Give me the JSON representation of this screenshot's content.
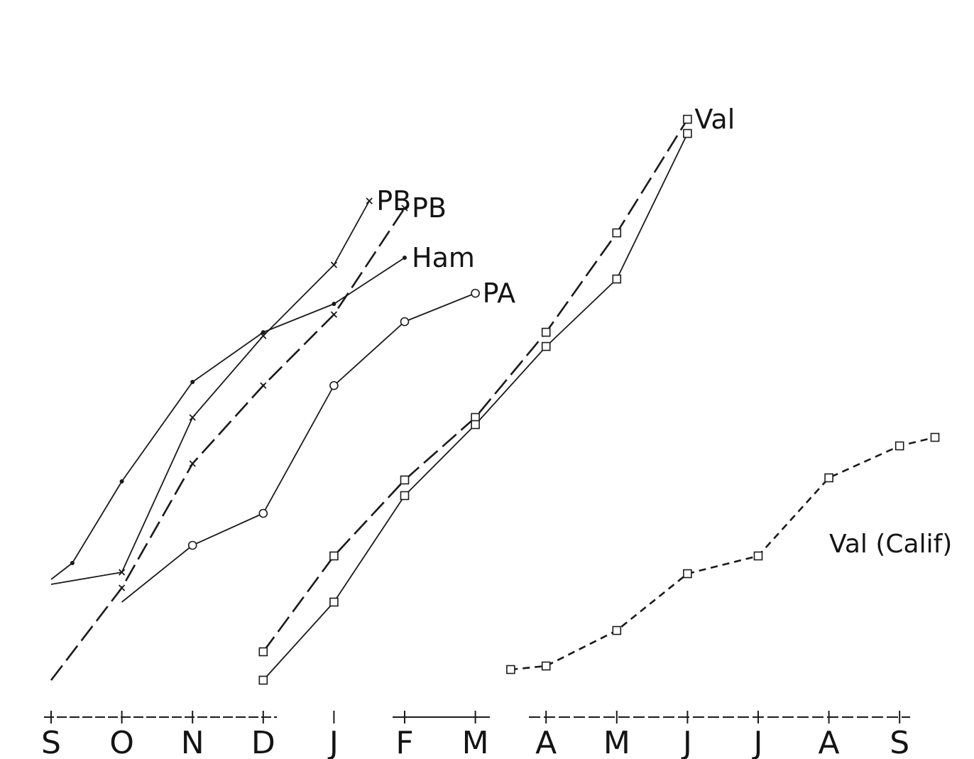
{
  "chart_data": {
    "type": "line",
    "title": "",
    "xlabel": "",
    "ylabel": "",
    "x_categories": [
      "S",
      "O",
      "N",
      "D",
      "J",
      "F",
      "M",
      "A",
      "M",
      "J",
      "J",
      "A",
      "S"
    ],
    "grid": false,
    "series": [
      {
        "name": "PB",
        "marker": "x",
        "dashed": true,
        "points": [
          [
            0,
            0.2
          ],
          [
            1,
            1.5
          ],
          [
            2,
            3.25
          ],
          [
            3,
            4.35
          ],
          [
            4,
            5.35
          ],
          [
            5,
            6.85
          ]
        ]
      },
      {
        "name": "PB",
        "marker": "x",
        "dashed": false,
        "points": [
          [
            0,
            1.55
          ],
          [
            1,
            1.72
          ],
          [
            2,
            3.9
          ],
          [
            3,
            5.05
          ],
          [
            4,
            6.05
          ],
          [
            4.5,
            6.95
          ]
        ]
      },
      {
        "name": "Ham",
        "marker": "dot",
        "dashed": false,
        "points": [
          [
            0,
            1.62
          ],
          [
            0.3,
            1.85
          ],
          [
            1,
            3.0
          ],
          [
            2,
            4.4
          ],
          [
            3,
            5.1
          ],
          [
            4,
            5.5
          ],
          [
            5,
            6.15
          ]
        ]
      },
      {
        "name": "PA",
        "marker": "circle",
        "dashed": false,
        "points": [
          [
            1,
            1.3
          ],
          [
            2,
            2.1
          ],
          [
            3,
            2.55
          ],
          [
            4,
            4.35
          ],
          [
            5,
            5.25
          ],
          [
            6,
            5.65
          ]
        ]
      },
      {
        "name": "Val",
        "marker": "square",
        "dashed": true,
        "points": [
          [
            3,
            0.6
          ],
          [
            4,
            1.95
          ],
          [
            5,
            3.02
          ],
          [
            6,
            3.9
          ],
          [
            7,
            5.1
          ],
          [
            8,
            6.5
          ],
          [
            9,
            8.1
          ]
        ]
      },
      {
        "name": "",
        "marker": "square",
        "dashed": false,
        "points": [
          [
            3,
            0.2
          ],
          [
            4,
            1.3
          ],
          [
            5,
            2.8
          ],
          [
            6,
            3.8
          ],
          [
            7,
            4.9
          ],
          [
            8,
            5.85
          ],
          [
            9,
            7.9
          ]
        ]
      },
      {
        "name": "Val (Calif)",
        "marker": "square",
        "dashed": true,
        "points": [
          [
            6.5,
            0.35
          ],
          [
            7,
            0.4
          ],
          [
            8,
            0.9
          ],
          [
            9,
            1.7
          ],
          [
            10,
            1.95
          ],
          [
            11,
            3.05
          ],
          [
            12,
            3.5
          ],
          [
            12.5,
            3.62
          ]
        ]
      }
    ]
  }
}
